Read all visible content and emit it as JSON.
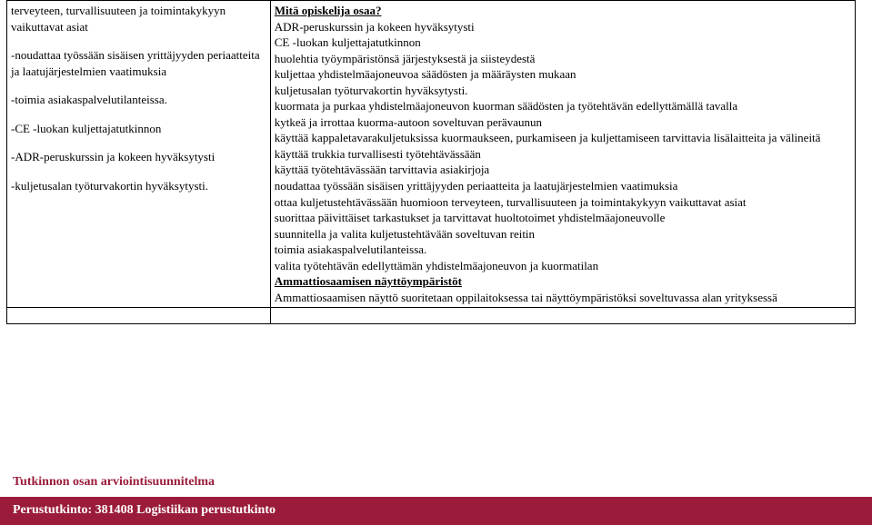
{
  "left": {
    "p1": "terveyteen, turvallisuuteen ja toimintakykyyn vaikuttavat asiat",
    "p2": "-noudattaa työssään sisäisen yrittäjyyden periaatteita ja laatujärjestelmien vaatimuksia",
    "p3": "-toimia asiakaspalvelutilanteissa.",
    "p4": "-CE -luokan kuljettajatutkinnon",
    "p5": "-ADR-peruskurssin ja kokeen hyväksytysti",
    "p6": "-kuljetusalan työturvakortin hyväksytysti."
  },
  "right": {
    "heading": "Mitä opiskelija osaa?",
    "l1": "ADR-peruskurssin ja kokeen hyväksytysti",
    "l2": "CE -luokan kuljettajatutkinnon",
    "l3": "huolehtia työympäristönsä järjestyksestä ja siisteydestä",
    "l4": "kuljettaa yhdistelmäajoneuvoa säädösten ja määräysten mukaan",
    "l5": "kuljetusalan työturvakortin hyväksytysti.",
    "l6": "kuormata ja purkaa yhdistelmäajoneuvon kuorman säädösten ja työtehtävän edellyttämällä tavalla",
    "l7": "kytkeä ja irrottaa kuorma-autoon soveltuvan perävaunun",
    "l8": "käyttää kappaletavarakuljetuksissa kuormaukseen, purkamiseen ja kuljettamiseen tarvittavia lisälaitteita ja välineitä",
    "l9": "käyttää trukkia turvallisesti työtehtävässään",
    "l10": "käyttää työtehtävässään tarvittavia asiakirjoja",
    "l11": "noudattaa työssään sisäisen yrittäjyyden periaatteita ja laatujärjestelmien vaatimuksia",
    "l12": "ottaa kuljetustehtävässään huomioon terveyteen, turvallisuuteen ja toimintakykyyn vaikuttavat asiat",
    "l13": "suorittaa päivittäiset tarkastukset ja tarvittavat huoltotoimet yhdistelmäajoneuvolle",
    "l14": "suunnitella ja valita kuljetustehtävään soveltuvan reitin",
    "l15": "toimia asiakaspalvelutilanteissa.",
    "l16": "valita työtehtävän edellyttämän yhdistelmäajoneuvon ja kuormatilan",
    "sub1": "Ammattiosaamisen näyttöympäristöt",
    "sub1text": "Ammattiosaamisen näyttö suoritetaan oppilaitoksessa tai näyttöympäristöksi soveltuvassa alan yrityksessä"
  },
  "footer": {
    "line1": "Tutkinnon osan arviointisuunnitelma",
    "line2": "Perustutkinto: 381408 Logistiikan perustutkinto"
  },
  "colors": {
    "maroon": "#9b1c3a",
    "white": "#ffffff",
    "black": "#000000"
  }
}
